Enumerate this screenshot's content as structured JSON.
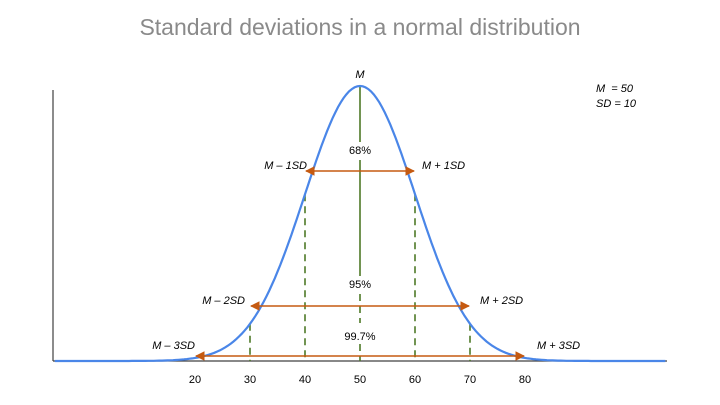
{
  "title": "Standard deviations in a normal distribution",
  "params": {
    "mean_label": "M  = 50",
    "sd_label": "SD = 10"
  },
  "chart_data": {
    "type": "line",
    "title": "Standard deviations in a normal distribution",
    "xlabel": "",
    "ylabel": "",
    "mean": 50,
    "sd": 10,
    "x_ticks": [
      20,
      30,
      40,
      50,
      60,
      70,
      80
    ],
    "xlim": [
      -8,
      107
    ],
    "grid": false,
    "legend": "none",
    "colors": {
      "curve": "#4a86e8",
      "arrows": "#c55a11",
      "dashes": "#4e7a27",
      "axis": "#404040"
    },
    "mean_label": "M",
    "sd_labels": [
      {
        "text": "M – 1SD",
        "x": 40
      },
      {
        "text": "M + 1SD",
        "x": 60
      },
      {
        "text": "M – 2SD",
        "x": 30
      },
      {
        "text": "M + 2SD",
        "x": 70
      },
      {
        "text": "M – 3SD",
        "x": 20
      },
      {
        "text": "M + 3SD",
        "x": 80
      }
    ],
    "ranges": [
      {
        "from": 40,
        "to": 60,
        "label": "68%"
      },
      {
        "from": 30,
        "to": 70,
        "label": "95%"
      },
      {
        "from": 20,
        "to": 80,
        "label": "99.7%"
      }
    ]
  }
}
